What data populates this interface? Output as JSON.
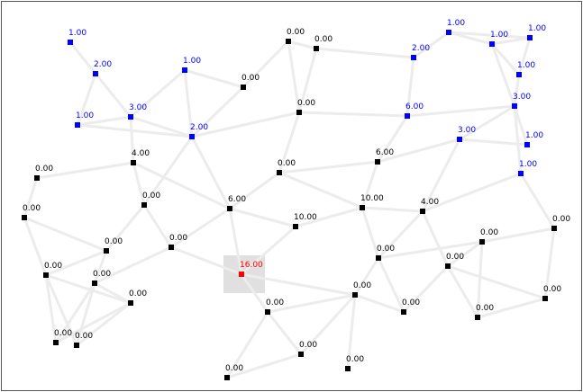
{
  "nodes": [
    {
      "label": "1.00",
      "color": "#0000ff"
    },
    {
      "label": "2.00",
      "color": "#0000ff"
    },
    {
      "label": "1.00",
      "color": "#0000ff"
    },
    {
      "label": "3.00",
      "color": "#0000ff"
    },
    {
      "label": "1.00",
      "color": "#0000ff"
    },
    {
      "label": "2.00",
      "color": "#0000ff"
    },
    {
      "label": "0.00",
      "color": "#000000"
    },
    {
      "label": "0.00",
      "color": "#000000"
    },
    {
      "label": "0.00",
      "color": "#000000"
    },
    {
      "label": "0.00",
      "color": "#000000"
    },
    {
      "label": "2.00",
      "color": "#0000ff"
    },
    {
      "label": "1.00",
      "color": "#0000ff"
    },
    {
      "label": "1.00",
      "color": "#0000ff"
    },
    {
      "label": "1.00",
      "color": "#0000ff"
    },
    {
      "label": "1.00",
      "color": "#0000ff"
    },
    {
      "label": "3.00",
      "color": "#0000ff"
    },
    {
      "label": "6.00",
      "color": "#0000ff"
    },
    {
      "label": "3.00",
      "color": "#0000ff"
    },
    {
      "label": "1.00",
      "color": "#0000ff"
    },
    {
      "label": "1.00",
      "color": "#0000ff"
    },
    {
      "label": "4.00",
      "color": "#000000"
    },
    {
      "label": "0.00",
      "color": "#000000"
    },
    {
      "label": "0.00",
      "color": "#000000"
    },
    {
      "label": "6.00",
      "color": "#000000"
    },
    {
      "label": "0.00",
      "color": "#000000"
    },
    {
      "label": "6.00",
      "color": "#000000"
    },
    {
      "label": "0.00",
      "color": "#000000"
    },
    {
      "label": "10.00",
      "color": "#000000"
    },
    {
      "label": "4.00",
      "color": "#000000"
    },
    {
      "label": "10.00",
      "color": "#000000"
    },
    {
      "label": "0.00",
      "color": "#000000"
    },
    {
      "label": "0.00",
      "color": "#000000"
    },
    {
      "label": "0.00",
      "color": "#000000"
    },
    {
      "label": "0.00",
      "color": "#000000"
    },
    {
      "label": "0.00",
      "color": "#000000"
    },
    {
      "label": "0.00",
      "color": "#000000"
    },
    {
      "label": "0.00",
      "color": "#000000"
    },
    {
      "label": "16.00",
      "color": "#ff0000"
    },
    {
      "label": "0.00",
      "color": "#000000"
    },
    {
      "label": "0.00",
      "color": "#000000"
    },
    {
      "label": "0.00",
      "color": "#000000"
    },
    {
      "label": "0.00",
      "color": "#000000"
    },
    {
      "label": "0.00",
      "color": "#000000"
    },
    {
      "label": "0.00",
      "color": "#000000"
    },
    {
      "label": "0.00",
      "color": "#000000"
    },
    {
      "label": "0.00",
      "color": "#000000"
    },
    {
      "label": "0.00",
      "color": "#000000"
    },
    {
      "label": "0.00",
      "color": "#000000"
    },
    {
      "label": "0.00",
      "color": "#000000"
    },
    {
      "label": "0.00",
      "color": "#000000"
    }
  ]
}
